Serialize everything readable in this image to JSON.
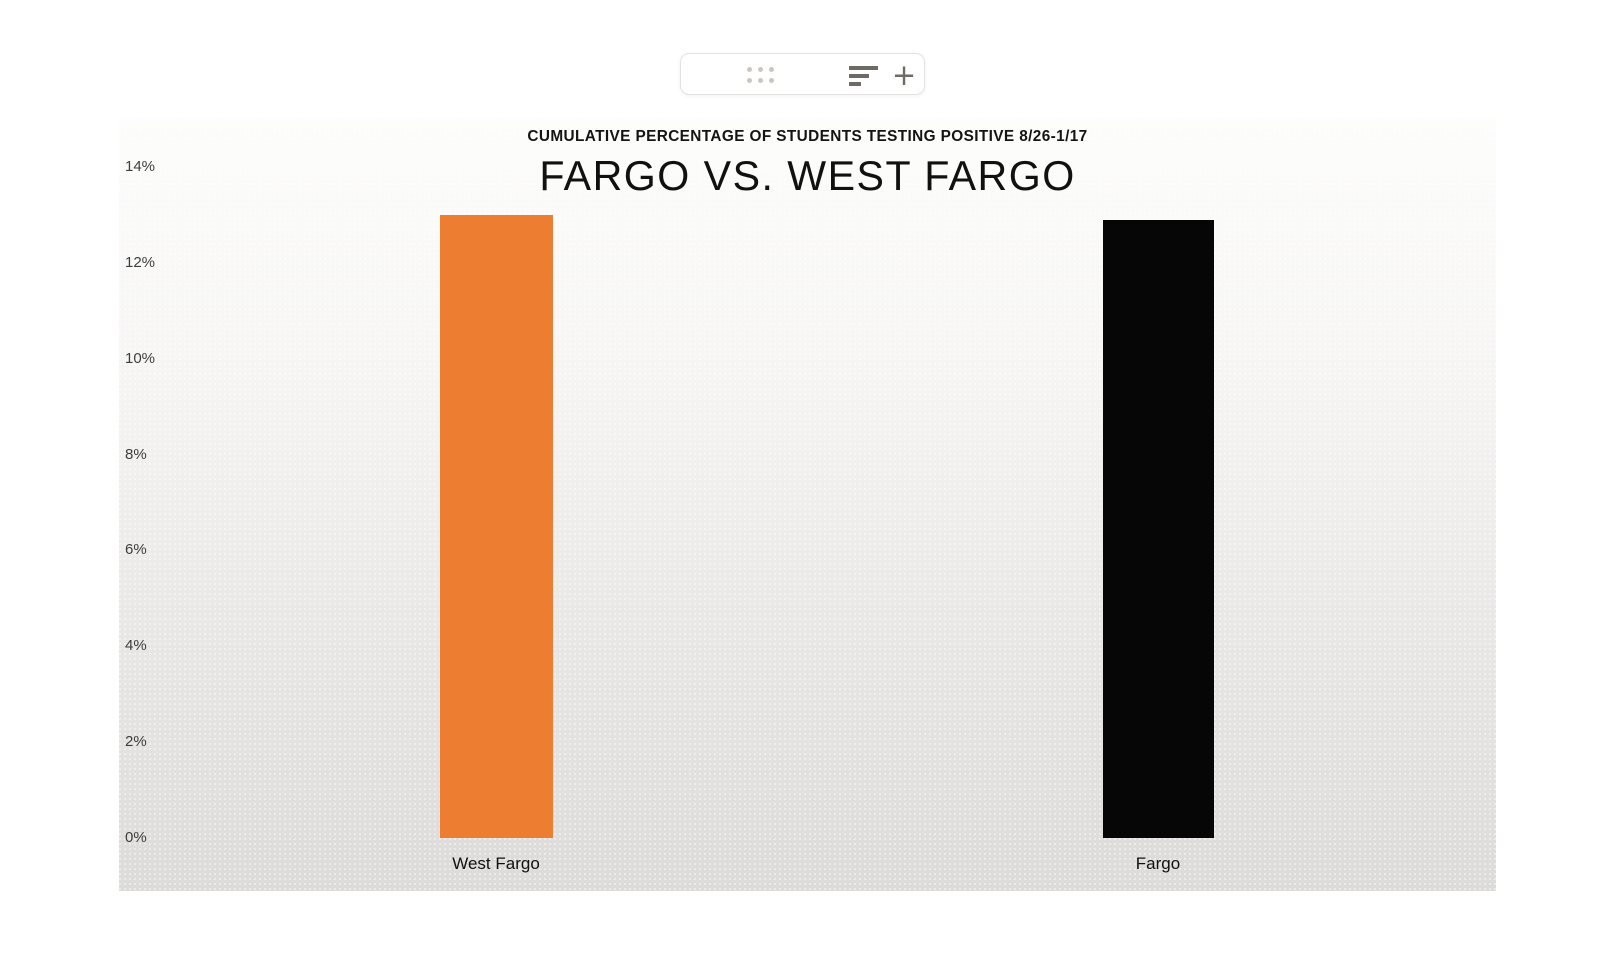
{
  "window": {
    "background": "#ffffff"
  },
  "toolbar": {
    "drag_handle_icon": "six-dot-drag-handle",
    "sort_icon": "horizontal-bars-sort",
    "plus_icon": "plus",
    "plus_glyph": "+"
  },
  "chart_data": {
    "type": "bar",
    "supertitle": "CUMULATIVE PERCENTAGE OF STUDENTS TESTING POSITIVE 8/26-1/17",
    "title": "FARGO VS. WEST FARGO",
    "categories": [
      "West Fargo",
      "Fargo"
    ],
    "values": [
      13.0,
      12.9
    ],
    "unit": "%",
    "bar_colors": [
      "#ED7D31",
      "#060606"
    ],
    "ylim": [
      0,
      14
    ],
    "ytick_interval": 2,
    "ytick_labels": [
      "0%",
      "2%",
      "4%",
      "6%",
      "8%",
      "10%",
      "12%",
      "14%"
    ],
    "grid": false,
    "legend": false,
    "plot_background_top": "#fdfdfc",
    "plot_background_bottom": "#dcdbd9",
    "axis_label_color": "#3d3d3d",
    "title_color": "#111111"
  }
}
